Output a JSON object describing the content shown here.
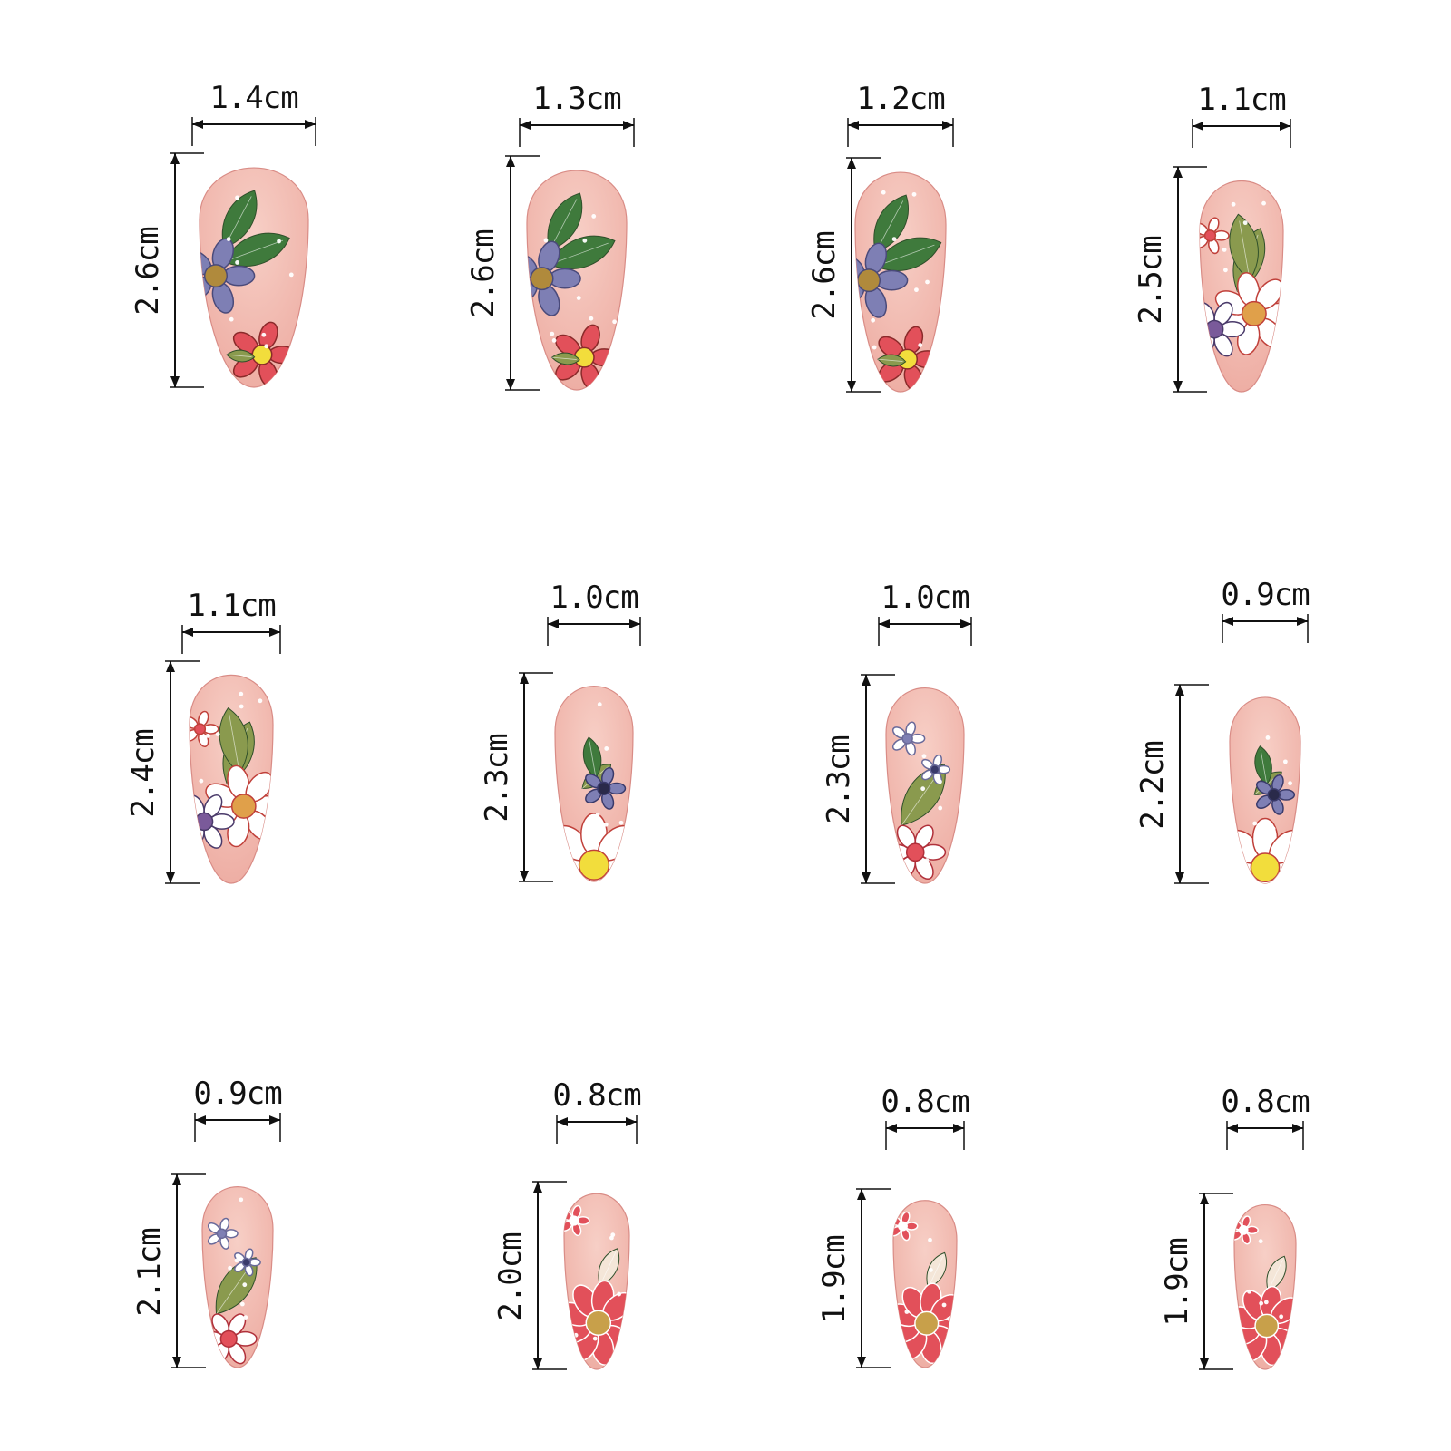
{
  "colors": {
    "nail_base": "#eeaea4",
    "nail_highlight": "#f7cfc6",
    "nail_edge": "#d98c86",
    "leaf_dark": "#3f7a3c",
    "leaf_olive": "#8a9a4e",
    "flower_blue": "#7e7fb4",
    "flower_red": "#e2505a",
    "flower_white": "#ffffff",
    "flower_center_orange": "#e0a04a",
    "flower_center_yellow": "#f2dd3c",
    "dimension_line": "#111111"
  },
  "nails": [
    {
      "id": 1,
      "width_label": "1.4cm",
      "length_label": "2.6cm",
      "motif": "blue-flower-dark-leaves-red-flower",
      "icon": "floral-nail-icon"
    },
    {
      "id": 2,
      "width_label": "1.3cm",
      "length_label": "2.6cm",
      "motif": "blue-flower-dark-leaves-red-flower",
      "icon": "floral-nail-icon"
    },
    {
      "id": 3,
      "width_label": "1.2cm",
      "length_label": "2.6cm",
      "motif": "blue-flower-dark-leaves-red-flower",
      "icon": "floral-nail-icon"
    },
    {
      "id": 4,
      "width_label": "1.1cm",
      "length_label": "2.5cm",
      "motif": "white-daisy-olive-leaves",
      "icon": "floral-nail-icon"
    },
    {
      "id": 5,
      "width_label": "1.1cm",
      "length_label": "2.4cm",
      "motif": "white-daisy-olive-leaves",
      "icon": "floral-nail-icon"
    },
    {
      "id": 6,
      "width_label": "1.0cm",
      "length_label": "2.3cm",
      "motif": "yellow-daisy-blue-flower",
      "icon": "floral-nail-icon"
    },
    {
      "id": 7,
      "width_label": "1.0cm",
      "length_label": "2.3cm",
      "motif": "olive-leaf-small-flowers",
      "icon": "floral-nail-icon"
    },
    {
      "id": 8,
      "width_label": "0.9cm",
      "length_label": "2.2cm",
      "motif": "yellow-daisy-blue-flower",
      "icon": "floral-nail-icon"
    },
    {
      "id": 9,
      "width_label": "0.9cm",
      "length_label": "2.1cm",
      "motif": "olive-leaf-small-flowers",
      "icon": "floral-nail-icon"
    },
    {
      "id": 10,
      "width_label": "0.8cm",
      "length_label": "2.0cm",
      "motif": "pink-daisy-leaf",
      "icon": "floral-nail-icon"
    },
    {
      "id": 11,
      "width_label": "0.8cm",
      "length_label": "1.9cm",
      "motif": "pink-daisy-leaf",
      "icon": "floral-nail-icon"
    },
    {
      "id": 12,
      "width_label": "0.8cm",
      "length_label": "1.9cm",
      "motif": "pink-daisy-leaf",
      "icon": "floral-nail-icon"
    }
  ]
}
